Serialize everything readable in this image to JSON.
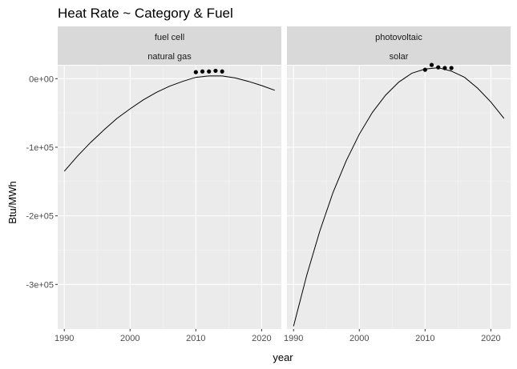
{
  "chart_data": {
    "type": "line",
    "title": "Heat Rate ~ Category & Fuel",
    "xlabel": "year",
    "ylabel": "Btu/MWh",
    "xlim": [
      1989,
      2023
    ],
    "ylim": [
      -365000,
      19000
    ],
    "x_ticks": [
      1990,
      2000,
      2010,
      2020
    ],
    "x_tick_labels": [
      "1990",
      "2000",
      "2010",
      "2020"
    ],
    "y_ticks": [
      0,
      -100000,
      -200000,
      -300000
    ],
    "y_tick_labels": [
      "0e+00",
      "-1e+05",
      "-2e+05",
      "-3e+05"
    ],
    "grid": true,
    "legend": "none",
    "panels": [
      {
        "strip_labels": [
          "fuel cell",
          "natural gas"
        ],
        "series": [
          {
            "kind": "line",
            "x": [
              1990,
              1992,
              1994,
              1996,
              1998,
              2000,
              2002,
              2004,
              2006,
              2008,
              2010,
              2012,
              2014,
              2016,
              2018,
              2020,
              2022
            ],
            "y": [
              -135000,
              -113000,
              -93000,
              -75000,
              -58000,
              -44000,
              -31000,
              -20000,
              -11000,
              -4000,
              2000,
              4000,
              4000,
              1000,
              -4000,
              -10000,
              -17000
            ]
          },
          {
            "kind": "points",
            "x": [
              2010,
              2011,
              2012,
              2013,
              2014
            ],
            "y": [
              9500,
              10500,
              10500,
              11500,
              10500
            ]
          }
        ]
      },
      {
        "strip_labels": [
          "photovoltaic",
          "solar"
        ],
        "series": [
          {
            "kind": "line",
            "x": [
              1990,
              1992,
              1994,
              1996,
              1998,
              2000,
              2002,
              2004,
              2006,
              2008,
              2010,
              2012,
              2014,
              2016,
              2018,
              2020,
              2022
            ],
            "y": [
              -361000,
              -287000,
              -222000,
              -166000,
              -120000,
              -81000,
              -49000,
              -24000,
              -5000,
              8000,
              14000,
              16000,
              11000,
              2000,
              -14000,
              -34000,
              -58000
            ]
          },
          {
            "kind": "points",
            "x": [
              2010,
              2011,
              2012,
              2013,
              2014
            ],
            "y": [
              13000,
              20000,
              16500,
              15500,
              15500
            ]
          }
        ]
      }
    ]
  }
}
